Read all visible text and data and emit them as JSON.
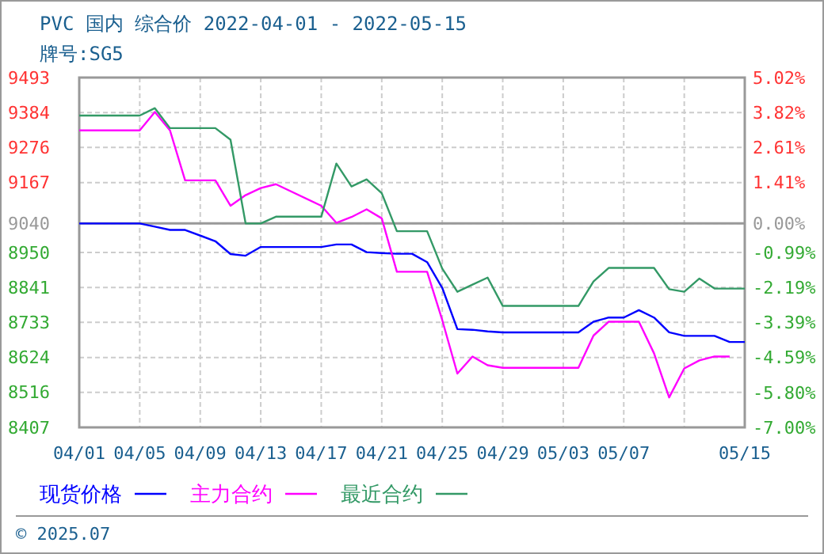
{
  "chart_data": {
    "type": "line",
    "title": "PVC 国内 综合价 2022-04-01 - 2022-05-15",
    "subtitle": "牌号:SG5",
    "x": [
      "2022-04-01",
      "2022-04-05",
      "2022-04-06",
      "2022-04-07",
      "2022-04-08",
      "2022-04-10",
      "2022-04-11",
      "2022-04-12",
      "2022-04-13",
      "2022-04-14",
      "2022-04-17",
      "2022-04-18",
      "2022-04-19",
      "2022-04-20",
      "2022-04-21",
      "2022-04-22",
      "2022-04-23",
      "2022-04-24",
      "2022-04-25",
      "2022-04-26",
      "2022-04-27",
      "2022-04-28",
      "2022-04-29",
      "2022-05-04",
      "2022-05-05",
      "2022-05-06",
      "2022-05-07",
      "2022-05-08",
      "2022-05-09",
      "2022-05-10",
      "2022-05-11",
      "2022-05-12",
      "2022-05-13",
      "2022-05-14",
      "2022-05-15"
    ],
    "series": [
      {
        "name": "现货价格",
        "color": "#0000ff",
        "values": [
          9040,
          9040,
          9030,
          9020,
          9020,
          8985,
          8945,
          8940,
          8967,
          8967,
          8967,
          8975,
          8975,
          8951,
          8948,
          8946,
          8946,
          8920,
          8840,
          8712,
          8710,
          8705,
          8702,
          8702,
          8735,
          8748,
          8748,
          8771,
          8748,
          8702,
          8691,
          8691,
          8691,
          8672,
          8672
        ]
      },
      {
        "name": "主力合约",
        "color": "#ff00ff",
        "values": [
          9329,
          9329,
          9386,
          9329,
          9174,
          9174,
          9095,
          9128,
          9150,
          9162,
          9095,
          9042,
          9060,
          9084,
          9056,
          8890,
          8890,
          8890,
          8740,
          8574,
          8627,
          8600,
          8592,
          8592,
          8692,
          8735,
          8735,
          8735,
          8637,
          8500,
          8590,
          8615,
          8627,
          8627,
          null
        ]
      },
      {
        "name": "最近合约",
        "color": "#339966",
        "values": [
          9375,
          9375,
          9398,
          9336,
          9336,
          9336,
          9300,
          9040,
          9040,
          9061,
          9061,
          9226,
          9155,
          9177,
          9134,
          9016,
          9016,
          9016,
          8900,
          8828,
          8850,
          8872,
          8784,
          8784,
          8860,
          8902,
          8902,
          8902,
          8902,
          8836,
          8828,
          8869,
          8838,
          8838,
          8838
        ]
      }
    ],
    "xlim": [
      "2022-04-01",
      "2022-05-15"
    ],
    "xticks": [
      {
        "value": "2022-04-01",
        "label": "04/01"
      },
      {
        "value": "2022-04-05",
        "label": "04/05"
      },
      {
        "value": "2022-04-09",
        "label": "04/09"
      },
      {
        "value": "2022-04-13",
        "label": "04/13"
      },
      {
        "value": "2022-04-17",
        "label": "04/17"
      },
      {
        "value": "2022-04-21",
        "label": "04/21"
      },
      {
        "value": "2022-04-25",
        "label": "04/25"
      },
      {
        "value": "2022-04-29",
        "label": "04/29"
      },
      {
        "value": "2022-05-03",
        "label": "05/03"
      },
      {
        "value": "2022-05-07",
        "label": "05/07"
      },
      {
        "value": "2022-05-11",
        "label": null
      },
      {
        "value": "2022-05-15",
        "label": "05/15"
      }
    ],
    "ylim": [
      8407,
      9493
    ],
    "yticks": [
      8407,
      8516,
      8624,
      8733,
      8841,
      8950,
      9040,
      9167,
      9276,
      9384,
      9493
    ],
    "y2lim": [
      -7.0,
      5.02
    ],
    "y2ticks": [
      {
        "value": -7.0,
        "label": "-7.00%"
      },
      {
        "value": -5.8,
        "label": "-5.80%"
      },
      {
        "value": -4.59,
        "label": "-4.59%"
      },
      {
        "value": -3.39,
        "label": "-3.39%"
      },
      {
        "value": -2.19,
        "label": "-2.19%"
      },
      {
        "value": -0.99,
        "label": "-0.99%"
      },
      {
        "value": 0,
        "label": "0.00%"
      },
      {
        "value": 1.41,
        "label": "1.41%"
      },
      {
        "value": 2.61,
        "label": "2.61%"
      },
      {
        "value": 3.82,
        "label": "3.82%"
      },
      {
        "value": 5.02,
        "label": "5.02%"
      }
    ],
    "ref_lines": [
      {
        "axis": "y",
        "value": 9040,
        "color": "#999999"
      }
    ],
    "grid": true,
    "legend": "bottom",
    "marker": "none",
    "line_style": "solid",
    "annotations": [
      "© 2025.07"
    ]
  }
}
